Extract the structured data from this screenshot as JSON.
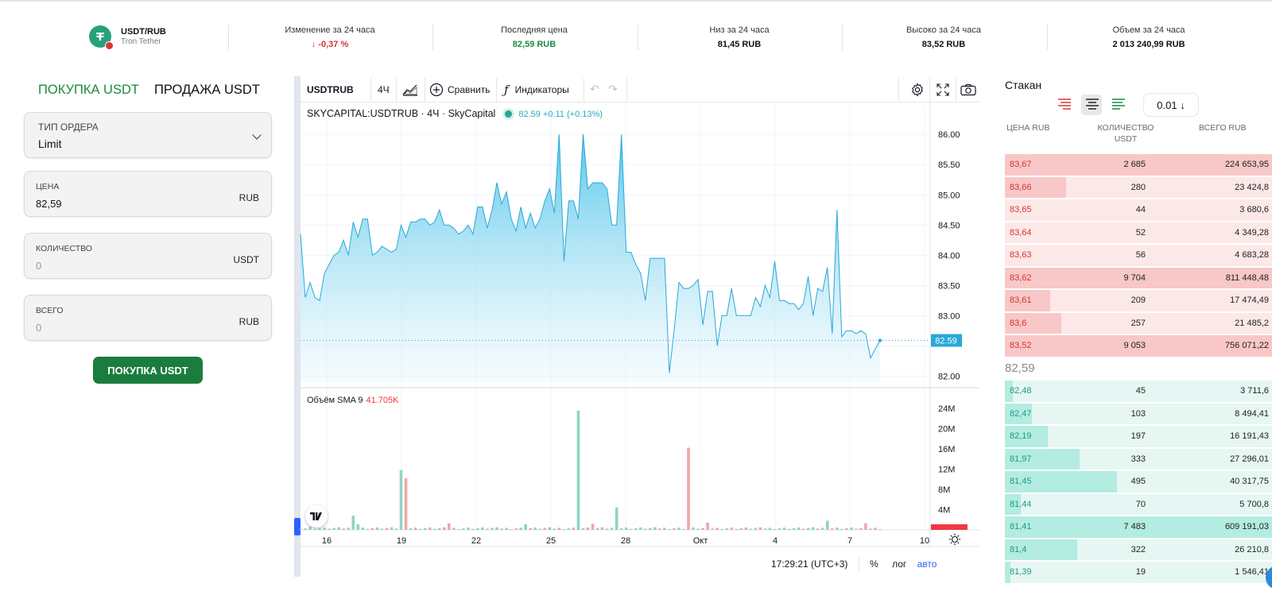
{
  "ticker": {
    "pair": "USDT/RUB",
    "name": "Tron Tether",
    "stats": [
      {
        "label": "Изменение за 24 часа",
        "value": "↓ -0,37 %",
        "tone": "red"
      },
      {
        "label": "Последняя цена",
        "value": "82,59 RUB",
        "tone": "green"
      },
      {
        "label": "Низ за 24 часа",
        "value": "81,45 RUB",
        "tone": "normal"
      },
      {
        "label": "Высоко за 24 часа",
        "value": "83,52 RUB",
        "tone": "normal"
      },
      {
        "label": "Объем за 24 часа",
        "value": "2 013 240,99 RUB",
        "tone": "normal"
      }
    ]
  },
  "trade": {
    "tab_buy": "ПОКУПКА USDT",
    "tab_sell": "ПРОДАЖА USDT",
    "order_type_label": "ТИП ОРДЕРА",
    "order_type_value": "Limit",
    "price_label": "ЦЕНА",
    "price_value": "82,59",
    "price_unit": "RUB",
    "qty_label": "КОЛИЧЕСТВО",
    "qty_placeholder": "0",
    "qty_unit": "USDT",
    "total_label": "ВСЕГО",
    "total_placeholder": "0",
    "total_unit": "RUB",
    "submit_label": "ПОКУПКА USDT"
  },
  "chart_toolbar": {
    "symbol": "USDTRUB",
    "interval": "4Ч",
    "compare": "Сравнить",
    "indicators": "Индикаторы"
  },
  "chart_legend": {
    "title": "SKYCAPITAL:USDTRUB · 4Ч · SkyCapital",
    "value": "82.59 +0.11 (+0.13%)"
  },
  "volume_legend": {
    "label": "Объём SMA 9",
    "value": "41.705K"
  },
  "status": {
    "time": "17:29:21 (UTC+3)",
    "percent": "%",
    "log": "лог",
    "auto": "авто"
  },
  "colors": {
    "line": "#2aa8d8",
    "up": "#26a69a",
    "down": "#ef5350",
    "price_tag": "#2aa8d8"
  },
  "chart_data": {
    "type": "area",
    "title": "SKYCAPITAL:USDTRUB · 4Ч · SkyCapital",
    "x_ticks": [
      "16",
      "19",
      "22",
      "25",
      "28",
      "Окт",
      "4",
      "7",
      "10"
    ],
    "y_ticks": [
      "86.00",
      "85.50",
      "85.00",
      "84.50",
      "84.00",
      "83.50",
      "83.00",
      "82.50",
      "82.00"
    ],
    "ylim": [
      81.9,
      86.2
    ],
    "last_price": "82.59",
    "price": [
      84.35,
      83.3,
      83.55,
      83.3,
      83.25,
      83.7,
      83.85,
      84.0,
      84.05,
      84.25,
      84.0,
      84.55,
      84.3,
      84.6,
      84.6,
      84.0,
      84.05,
      84.15,
      84.1,
      84.05,
      84.1,
      84.5,
      84.3,
      84.55,
      84.55,
      84.6,
      84.6,
      84.5,
      84.55,
      84.75,
      84.5,
      84.5,
      84.45,
      84.35,
      84.4,
      84.5,
      84.35,
      84.8,
      84.8,
      84.45,
      84.75,
      85.2,
      84.85,
      85.05,
      84.6,
      84.4,
      84.8,
      84.45,
      84.7,
      84.45,
      84.6,
      84.9,
      85.1,
      84.7,
      86.0,
      83.9,
      84.9,
      84.9,
      84.6,
      86.0,
      85.1,
      85.2,
      85.2,
      85.2,
      85.1,
      84.5,
      84.5,
      86.0,
      84.05,
      84.05,
      83.85,
      83.7,
      83.25,
      83.95,
      83.95,
      83.95,
      83.95,
      82.05,
      82.75,
      83.55,
      83.45,
      83.45,
      83.5,
      83.6,
      82.85,
      83.4,
      83.4,
      82.5,
      83.0,
      83.0,
      83.45,
      83.0,
      83.0,
      83.0,
      83.0,
      83.3,
      83.15,
      83.5,
      83.3,
      83.9,
      83.25,
      83.25,
      83.2,
      83.2,
      83.1,
      83.2,
      83.65,
      83.0,
      83.45,
      83.4,
      83.8,
      82.7,
      84.75,
      82.65,
      82.75,
      82.75,
      82.7,
      82.75,
      82.7,
      82.3,
      82.45,
      82.59
    ],
    "volume_ticks": [
      "24M",
      "20M",
      "16M",
      "12M",
      "8M",
      "4M"
    ],
    "volume_max": 26,
    "volume_spikes": [
      {
        "i": 2,
        "v": 0.6,
        "up": true
      },
      {
        "i": 11,
        "v": 2.8,
        "up": true
      },
      {
        "i": 12,
        "v": 1.1,
        "up": true
      },
      {
        "i": 21,
        "v": 11.8,
        "up": true
      },
      {
        "i": 22,
        "v": 10.2,
        "up": false
      },
      {
        "i": 31,
        "v": 1.3,
        "up": false
      },
      {
        "i": 47,
        "v": 1.1,
        "up": true
      },
      {
        "i": 58,
        "v": 23.5,
        "up": true
      },
      {
        "i": 61,
        "v": 1.2,
        "up": false
      },
      {
        "i": 66,
        "v": 4.4,
        "up": true
      },
      {
        "i": 81,
        "v": 16.2,
        "up": false
      },
      {
        "i": 85,
        "v": 1.4,
        "up": false
      },
      {
        "i": 110,
        "v": 1.8,
        "up": true
      },
      {
        "i": 118,
        "v": 1.3,
        "up": false
      }
    ]
  },
  "orderbook": {
    "title": "Стакан",
    "step": "0.01 ↓",
    "head_price": "ЦЕНА RUB",
    "head_qty": "КОЛИЧЕСТВО USDT",
    "head_total": "ВСЕГО RUB",
    "mid_price": "82,59",
    "asks": [
      {
        "price": "83,67",
        "qty": "2 685",
        "total": "224 653,95",
        "depth": 1.0
      },
      {
        "price": "83,66",
        "qty": "280",
        "total": "23 424,8",
        "depth": 0.23
      },
      {
        "price": "83,65",
        "qty": "44",
        "total": "3 680,6",
        "depth": 0.0
      },
      {
        "price": "83,64",
        "qty": "52",
        "total": "4 349,28",
        "depth": 0.0
      },
      {
        "price": "83,63",
        "qty": "56",
        "total": "4 683,28",
        "depth": 0.0
      },
      {
        "price": "83,62",
        "qty": "9 704",
        "total": "811 448,48",
        "depth": 1.0
      },
      {
        "price": "83,61",
        "qty": "209",
        "total": "17 474,49",
        "depth": 0.17
      },
      {
        "price": "83,6",
        "qty": "257",
        "total": "21 485,2",
        "depth": 0.21
      },
      {
        "price": "83,52",
        "qty": "9 053",
        "total": "756 071,22",
        "depth": 1.0
      }
    ],
    "bids": [
      {
        "price": "82,48",
        "qty": "45",
        "total": "3 711,6",
        "depth": 0.03
      },
      {
        "price": "82,47",
        "qty": "103",
        "total": "8 494,41",
        "depth": 0.1
      },
      {
        "price": "82,19",
        "qty": "197",
        "total": "16 191,43",
        "depth": 0.16
      },
      {
        "price": "81,97",
        "qty": "333",
        "total": "27 296,01",
        "depth": 0.28
      },
      {
        "price": "81,45",
        "qty": "495",
        "total": "40 317,75",
        "depth": 0.42
      },
      {
        "price": "81,44",
        "qty": "70",
        "total": "5 700,8",
        "depth": 0.06
      },
      {
        "price": "81,41",
        "qty": "7 483",
        "total": "609 191,03",
        "depth": 1.0
      },
      {
        "price": "81,4",
        "qty": "322",
        "total": "26 210,8",
        "depth": 0.27
      },
      {
        "price": "81,39",
        "qty": "19",
        "total": "1 546,41",
        "depth": 0.02
      }
    ]
  }
}
